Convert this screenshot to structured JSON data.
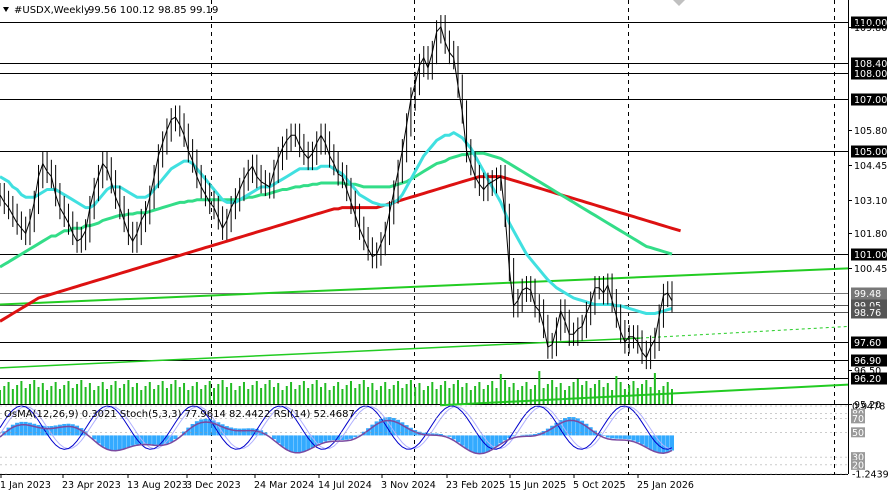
{
  "header": {
    "symbol": "#USDX,Weekly",
    "ohlc": "99.56 100.12 98.85 99.19"
  },
  "oscillator_label": "OsMA(12,26,9) 0.3021  Stoch(5,3,3) 77.9614 82.4422  RSI(14) 52.4687",
  "colors": {
    "price_line": "#000000",
    "sma_fast": "#40e0e0",
    "sma_mid": "#33dd88",
    "sma_slow": "#dd1111",
    "trendline": "#22cc22",
    "volume": "#22bb22",
    "osma": "#33aaff",
    "stoch_main": "#0000cc",
    "stoch_signal": "#b0b0ff",
    "rsi": "#7a4aa0",
    "grid": "#000000"
  },
  "chart_data": {
    "type": "line",
    "title": "#USDX,Weekly",
    "x_tick_labels": [
      "1 Jan 2023",
      "23 Apr 2023",
      "13 Aug 2023",
      "3 Dec 2023",
      "24 Mar 2024",
      "14 Jul 2024",
      "3 Nov 2024",
      "23 Feb 2025",
      "15 Jun 2025",
      "5 Oct 2025",
      "25 Jan 2026"
    ],
    "price_axis_labels": [
      {
        "value": 110.0,
        "label": "110.00",
        "highlight": true,
        "color": "#000000"
      },
      {
        "value": 109.8,
        "label": "109.80",
        "highlight": false
      },
      {
        "value": 108.4,
        "label": "108.40",
        "highlight": true,
        "color": "#000000"
      },
      {
        "value": 108.0,
        "label": "108.00",
        "highlight": true,
        "color": "#000000"
      },
      {
        "value": 107.0,
        "label": "107.00",
        "highlight": true,
        "color": "#000000"
      },
      {
        "value": 105.8,
        "label": "105.80",
        "highlight": false
      },
      {
        "value": 105.0,
        "label": "105.00",
        "highlight": true,
        "color": "#000000"
      },
      {
        "value": 104.45,
        "label": "104.45",
        "highlight": false
      },
      {
        "value": 103.1,
        "label": "103.10",
        "highlight": false
      },
      {
        "value": 101.8,
        "label": "101.80",
        "highlight": false
      },
      {
        "value": 101.0,
        "label": "101.00",
        "highlight": true,
        "color": "#000000"
      },
      {
        "value": 100.45,
        "label": "100.45",
        "highlight": false
      },
      {
        "value": 99.48,
        "label": "99.48",
        "highlight": true,
        "color": "#777777"
      },
      {
        "value": 99.05,
        "label": "99.05",
        "highlight": true,
        "color": "#555555"
      },
      {
        "value": 98.76,
        "label": "98.76",
        "highlight": true,
        "color": "#555555"
      },
      {
        "value": 97.6,
        "label": "97.60",
        "highlight": true,
        "color": "#000000"
      },
      {
        "value": 96.9,
        "label": "96.90",
        "highlight": true,
        "color": "#000000"
      },
      {
        "value": 96.5,
        "label": "96.50",
        "highlight": false
      },
      {
        "value": 96.2,
        "label": "96.20",
        "highlight": true,
        "color": "#000000"
      },
      {
        "value": 95.2,
        "label": "95.20",
        "highlight": false
      }
    ],
    "osc_axis_labels": [
      "0.9478",
      "80",
      "70",
      "50",
      "30",
      "20",
      "-1.2439"
    ],
    "series": [
      {
        "name": "price",
        "values": [
          103.3,
          103.0,
          102.8,
          102.5,
          102.2,
          102.0,
          101.8,
          102.3,
          103.0,
          104.0,
          104.5,
          104.2,
          104.0,
          103.3,
          102.8,
          102.5,
          102.2,
          101.8,
          101.5,
          101.6,
          101.9,
          102.8,
          103.5,
          104.0,
          104.5,
          104.3,
          103.8,
          103.2,
          102.8,
          102.3,
          101.8,
          101.5,
          101.8,
          102.3,
          102.6,
          103.2,
          104.0,
          104.8,
          105.3,
          105.8,
          106.2,
          106.3,
          106.0,
          105.6,
          105.0,
          104.6,
          104.0,
          103.6,
          103.3,
          103.0,
          102.8,
          102.4,
          102.0,
          102.3,
          102.8,
          103.1,
          103.5,
          103.9,
          104.2,
          104.4,
          104.0,
          103.8,
          103.7,
          103.6,
          104.2,
          104.7,
          105.1,
          105.4,
          105.6,
          105.6,
          105.2,
          104.9,
          104.7,
          104.9,
          105.3,
          105.6,
          105.3,
          104.8,
          104.5,
          104.1,
          104.0,
          103.5,
          103.0,
          102.5,
          102.0,
          101.6,
          101.2,
          100.9,
          101.0,
          101.4,
          101.8,
          102.6,
          103.4,
          104.2,
          105.0,
          106.0,
          107.0,
          107.6,
          108.3,
          108.6,
          108.2,
          108.8,
          109.6,
          109.8,
          109.2,
          108.8,
          108.6,
          107.5,
          106.5,
          105.0,
          104.5,
          104.0,
          103.7,
          103.5,
          103.7,
          103.8,
          103.9,
          104.0,
          102.5,
          100.4,
          99.0,
          99.2,
          99.6,
          99.7,
          99.6,
          99.0,
          98.8,
          98.2,
          97.4,
          97.5,
          98.1,
          98.8,
          98.4,
          97.9,
          97.9,
          98.1,
          98.2,
          98.7,
          99.1,
          99.7,
          99.7,
          99.5,
          99.8,
          99.2,
          98.6,
          98.0,
          97.6,
          97.8,
          97.8,
          97.6,
          97.2,
          97.0,
          97.4,
          97.7,
          98.6,
          99.4,
          99.5,
          99.19
        ]
      },
      {
        "name": "sma_fast",
        "values": [
          104.0,
          103.9,
          103.8,
          103.6,
          103.5,
          103.3,
          103.2,
          103.2,
          103.2,
          103.3,
          103.4,
          103.5,
          103.5,
          103.5,
          103.4,
          103.3,
          103.2,
          103.1,
          103.0,
          102.9,
          102.8,
          102.8,
          102.9,
          103.1,
          103.3,
          103.5,
          103.6,
          103.6,
          103.6,
          103.5,
          103.4,
          103.3,
          103.2,
          103.2,
          103.2,
          103.3,
          103.5,
          103.7,
          103.9,
          104.1,
          104.3,
          104.4,
          104.5,
          104.6,
          104.6,
          104.5,
          104.3,
          104.1,
          103.9,
          103.7,
          103.5,
          103.3,
          103.1,
          103.0,
          103.0,
          103.0,
          103.1,
          103.2,
          103.3,
          103.4,
          103.5,
          103.6,
          103.6,
          103.6,
          103.7,
          103.8,
          103.9,
          104.0,
          104.1,
          104.2,
          104.3,
          104.3,
          104.3,
          104.3,
          104.3,
          104.4,
          104.4,
          104.4,
          104.3,
          104.2,
          104.1,
          103.9,
          103.7,
          103.5,
          103.3,
          103.2,
          103.1,
          103.0,
          102.95,
          102.9,
          102.9,
          102.9,
          103.0,
          103.1,
          103.3,
          103.6,
          103.9,
          104.2,
          104.5,
          104.8,
          105.0,
          105.2,
          105.4,
          105.5,
          105.6,
          105.6,
          105.7,
          105.6,
          105.5,
          105.3,
          105.1,
          104.8,
          104.5,
          104.2,
          103.9,
          103.6,
          103.3,
          103.0,
          102.6,
          102.2,
          101.9,
          101.6,
          101.3,
          101.0,
          100.8,
          100.6,
          100.4,
          100.2,
          100.0,
          99.85,
          99.7,
          99.6,
          99.5,
          99.4,
          99.3,
          99.25,
          99.2,
          99.15,
          99.1,
          99.05,
          99.05,
          99.05,
          99.05,
          99.05,
          99.0,
          99.0,
          98.95,
          98.9,
          98.85,
          98.8,
          98.75,
          98.7,
          98.7,
          98.7,
          98.75,
          98.8,
          98.85,
          98.9
        ]
      },
      {
        "name": "sma_mid",
        "values": [
          100.5,
          100.6,
          100.7,
          100.8,
          100.9,
          101.0,
          101.1,
          101.2,
          101.3,
          101.4,
          101.5,
          101.6,
          101.7,
          101.7,
          101.8,
          101.9,
          101.9,
          102.0,
          102.0,
          102.0,
          102.1,
          102.1,
          102.15,
          102.2,
          102.3,
          102.35,
          102.4,
          102.45,
          102.5,
          102.5,
          102.55,
          102.55,
          102.6,
          102.6,
          102.6,
          102.65,
          102.7,
          102.75,
          102.8,
          102.85,
          102.9,
          102.95,
          103.0,
          103.0,
          103.05,
          103.05,
          103.1,
          103.1,
          103.1,
          103.1,
          103.1,
          103.1,
          103.1,
          103.1,
          103.1,
          103.1,
          103.1,
          103.15,
          103.2,
          103.2,
          103.25,
          103.3,
          103.3,
          103.35,
          103.4,
          103.45,
          103.5,
          103.5,
          103.55,
          103.6,
          103.6,
          103.65,
          103.65,
          103.7,
          103.7,
          103.75,
          103.75,
          103.75,
          103.75,
          103.75,
          103.75,
          103.7,
          103.7,
          103.7,
          103.65,
          103.6,
          103.6,
          103.6,
          103.6,
          103.6,
          103.6,
          103.6,
          103.65,
          103.7,
          103.75,
          103.8,
          103.9,
          104.0,
          104.1,
          104.2,
          104.3,
          104.4,
          104.5,
          104.55,
          104.6,
          104.7,
          104.75,
          104.8,
          104.85,
          104.85,
          104.9,
          104.9,
          104.9,
          104.9,
          104.85,
          104.8,
          104.75,
          104.7,
          104.6,
          104.5,
          104.4,
          104.3,
          104.2,
          104.1,
          104.0,
          103.9,
          103.8,
          103.7,
          103.6,
          103.5,
          103.4,
          103.3,
          103.2,
          103.1,
          103.0,
          102.9,
          102.8,
          102.7,
          102.6,
          102.5,
          102.4,
          102.3,
          102.2,
          102.1,
          102.0,
          101.9,
          101.8,
          101.7,
          101.6,
          101.5,
          101.4,
          101.3,
          101.25,
          101.2,
          101.15,
          101.1,
          101.05,
          101.0
        ]
      },
      {
        "name": "sma_slow",
        "values": [
          98.4,
          98.5,
          98.6,
          98.7,
          98.8,
          98.9,
          99.0,
          99.1,
          99.2,
          99.3,
          99.35,
          99.4,
          99.45,
          99.5,
          99.55,
          99.6,
          99.65,
          99.7,
          99.75,
          99.8,
          99.85,
          99.9,
          99.95,
          100.0,
          100.05,
          100.1,
          100.15,
          100.2,
          100.25,
          100.3,
          100.35,
          100.4,
          100.45,
          100.5,
          100.55,
          100.6,
          100.65,
          100.7,
          100.75,
          100.8,
          100.85,
          100.9,
          100.95,
          101.0,
          101.05,
          101.1,
          101.15,
          101.2,
          101.25,
          101.3,
          101.35,
          101.4,
          101.45,
          101.5,
          101.55,
          101.6,
          101.65,
          101.7,
          101.75,
          101.8,
          101.85,
          101.9,
          101.95,
          102.0,
          102.05,
          102.1,
          102.15,
          102.2,
          102.25,
          102.3,
          102.35,
          102.4,
          102.45,
          102.5,
          102.55,
          102.6,
          102.65,
          102.7,
          102.75,
          102.75,
          102.8,
          102.8,
          102.8,
          102.8,
          102.8,
          102.8,
          102.8,
          102.8,
          102.8,
          102.85,
          102.9,
          102.95,
          103.0,
          103.05,
          103.1,
          103.15,
          103.2,
          103.25,
          103.3,
          103.35,
          103.4,
          103.45,
          103.5,
          103.55,
          103.6,
          103.65,
          103.7,
          103.75,
          103.8,
          103.85,
          103.9,
          103.95,
          104.0,
          104.0,
          104.0,
          104.0,
          104.0,
          104.0,
          103.95,
          103.9,
          103.85,
          103.8,
          103.75,
          103.7,
          103.65,
          103.6,
          103.55,
          103.5,
          103.45,
          103.4,
          103.35,
          103.3,
          103.25,
          103.2,
          103.15,
          103.1,
          103.05,
          103.0,
          102.95,
          102.9,
          102.85,
          102.8,
          102.75,
          102.7,
          102.65,
          102.6,
          102.55,
          102.5,
          102.45,
          102.4,
          102.35,
          102.3,
          102.25,
          102.2,
          102.15,
          102.1,
          102.05,
          102.0,
          101.95,
          101.9
        ]
      }
    ],
    "ylim": [
      95.2,
      110.6
    ],
    "grid": true
  }
}
